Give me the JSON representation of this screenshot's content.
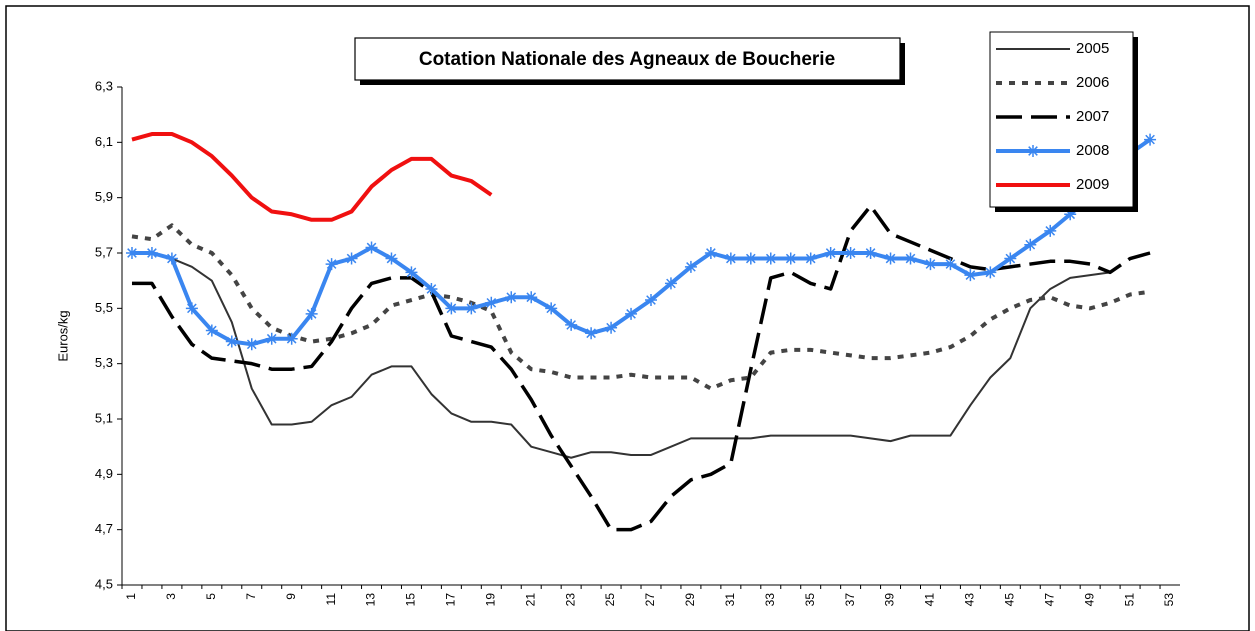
{
  "chart_data": {
    "type": "line",
    "title": "Cotation Nationale des Agneaux de Boucherie",
    "ylabel": "Euros/kg",
    "x": [
      1,
      2,
      3,
      4,
      5,
      6,
      7,
      8,
      9,
      10,
      11,
      12,
      13,
      14,
      15,
      16,
      17,
      18,
      19,
      20,
      21,
      22,
      23,
      24,
      25,
      26,
      27,
      28,
      29,
      30,
      31,
      32,
      33,
      34,
      35,
      36,
      37,
      38,
      39,
      40,
      41,
      42,
      43,
      44,
      45,
      46,
      47,
      48,
      49,
      50,
      51,
      52,
      53
    ],
    "xlim": [
      0.5,
      53.5
    ],
    "xticks": [
      1,
      3,
      5,
      7,
      9,
      11,
      13,
      15,
      17,
      19,
      21,
      23,
      25,
      27,
      29,
      31,
      33,
      35,
      37,
      39,
      41,
      43,
      45,
      47,
      49,
      51,
      53
    ],
    "ylim": [
      4.5,
      6.3
    ],
    "yticks": [
      {
        "value": 4.5,
        "label": "4,5"
      },
      {
        "value": 4.7,
        "label": "4,7"
      },
      {
        "value": 4.9,
        "label": "4,9"
      },
      {
        "value": 5.1,
        "label": "5,1"
      },
      {
        "value": 5.3,
        "label": "5,3"
      },
      {
        "value": 5.5,
        "label": "5,5"
      },
      {
        "value": 5.7,
        "label": "5,7"
      },
      {
        "value": 5.9,
        "label": "5,9"
      },
      {
        "value": 6.1,
        "label": "6,1"
      },
      {
        "value": 6.3,
        "label": "6,3"
      }
    ],
    "grid": false,
    "legend": "top-right",
    "series": [
      {
        "name": "2005",
        "color": "#333333",
        "width": 2,
        "dash": "none",
        "marker": "none",
        "values": [
          5.7,
          5.7,
          5.68,
          5.65,
          5.6,
          5.45,
          5.21,
          5.08,
          5.08,
          5.09,
          5.15,
          5.18,
          5.26,
          5.29,
          5.29,
          5.19,
          5.12,
          5.09,
          5.09,
          5.08,
          5.0,
          4.98,
          4.96,
          4.98,
          4.98,
          4.97,
          4.97,
          5.0,
          5.03,
          5.03,
          5.03,
          5.03,
          5.04,
          5.04,
          5.04,
          5.04,
          5.04,
          5.03,
          5.02,
          5.04,
          5.04,
          5.04,
          5.15,
          5.25,
          5.32,
          5.5,
          5.57,
          5.61,
          5.62,
          5.63,
          null,
          null,
          null
        ]
      },
      {
        "name": "2006",
        "color": "#444444",
        "width": 4,
        "dash": "6 7",
        "marker": "none",
        "values": [
          5.76,
          5.75,
          5.8,
          5.73,
          5.7,
          5.62,
          5.5,
          5.43,
          5.4,
          5.38,
          5.39,
          5.41,
          5.44,
          5.51,
          5.53,
          5.55,
          5.54,
          5.52,
          5.49,
          5.34,
          5.28,
          5.27,
          5.25,
          5.25,
          5.25,
          5.26,
          5.25,
          5.25,
          5.25,
          5.21,
          5.24,
          5.25,
          5.34,
          5.35,
          5.35,
          5.34,
          5.33,
          5.32,
          5.32,
          5.33,
          5.34,
          5.36,
          5.4,
          5.46,
          5.5,
          5.53,
          5.54,
          5.51,
          5.5,
          5.52,
          5.55,
          5.56,
          null
        ]
      },
      {
        "name": "2007",
        "color": "#000000",
        "width": 3.5,
        "dash": "26 9",
        "marker": "none",
        "values": [
          5.59,
          5.59,
          5.47,
          5.37,
          5.32,
          5.31,
          5.3,
          5.28,
          5.28,
          5.29,
          5.38,
          5.5,
          5.59,
          5.61,
          5.61,
          5.56,
          5.4,
          5.38,
          5.36,
          5.28,
          5.17,
          5.04,
          4.93,
          4.82,
          4.7,
          4.7,
          4.73,
          4.82,
          4.88,
          4.9,
          4.94,
          5.28,
          5.61,
          5.63,
          5.59,
          5.57,
          5.78,
          5.87,
          5.77,
          5.74,
          5.71,
          5.68,
          5.65,
          5.64,
          5.65,
          5.66,
          5.67,
          5.67,
          5.66,
          5.63,
          5.68,
          5.7,
          null
        ]
      },
      {
        "name": "2008",
        "color": "#3a86f0",
        "width": 4,
        "dash": "none",
        "marker": "star",
        "values": [
          5.7,
          5.7,
          5.68,
          5.5,
          5.42,
          5.38,
          5.37,
          5.39,
          5.39,
          5.48,
          5.66,
          5.68,
          5.72,
          5.68,
          5.63,
          5.57,
          5.5,
          5.5,
          5.52,
          5.54,
          5.54,
          5.5,
          5.44,
          5.41,
          5.43,
          5.48,
          5.53,
          5.59,
          5.65,
          5.7,
          5.68,
          5.68,
          5.68,
          5.68,
          5.68,
          5.7,
          5.7,
          5.7,
          5.68,
          5.68,
          5.66,
          5.66,
          5.62,
          5.63,
          5.68,
          5.73,
          5.78,
          5.84,
          5.9,
          6.0,
          6.06,
          6.11,
          null
        ]
      },
      {
        "name": "2009",
        "color": "#f01010",
        "width": 4,
        "dash": "none",
        "marker": "none",
        "values": [
          6.11,
          6.13,
          6.13,
          6.1,
          6.05,
          5.98,
          5.9,
          5.85,
          5.84,
          5.82,
          5.82,
          5.85,
          5.94,
          6.0,
          6.04,
          6.04,
          5.98,
          5.96,
          5.91,
          null,
          null,
          null,
          null,
          null,
          null,
          null,
          null,
          null,
          null,
          null,
          null,
          null,
          null,
          null,
          null,
          null,
          null,
          null,
          null,
          null,
          null,
          null,
          null,
          null,
          null,
          null,
          null,
          null,
          null,
          null,
          null,
          null,
          null
        ]
      }
    ]
  }
}
